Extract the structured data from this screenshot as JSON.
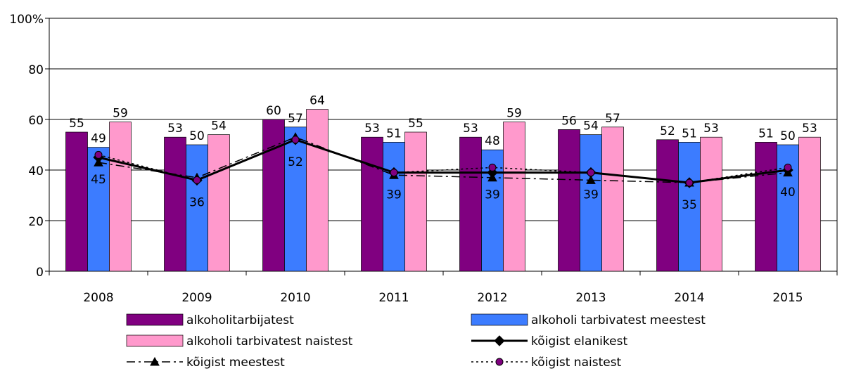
{
  "chart_data": {
    "type": "bar",
    "categories": [
      "2008",
      "2009",
      "2010",
      "2011",
      "2012",
      "2013",
      "2014",
      "2015"
    ],
    "series": [
      {
        "name": "alkoholitarbijatest",
        "type": "bar",
        "color": "#800080",
        "labels": true,
        "values": [
          55,
          53,
          60,
          53,
          53,
          56,
          52,
          51
        ]
      },
      {
        "name": "alkoholi tarbivatest meestest",
        "type": "bar",
        "color": "#3c7cff",
        "labels": true,
        "values": [
          49,
          50,
          57,
          51,
          48,
          54,
          51,
          50
        ]
      },
      {
        "name": "alkoholi tarbivatest naistest",
        "type": "bar",
        "color": "#ff99cc",
        "labels": true,
        "values": [
          59,
          54,
          64,
          55,
          59,
          57,
          53,
          53
        ]
      },
      {
        "name": "kõigist elanikest",
        "type": "line",
        "color": "#000000",
        "marker": "diamond",
        "dash": "none",
        "width": 3,
        "labels": true,
        "values": [
          45,
          36,
          52,
          39,
          39,
          39,
          35,
          40
        ]
      },
      {
        "name": "kõigist meestest",
        "type": "line",
        "color": "#000000",
        "marker": "triangle",
        "dash": "12,5,3,5",
        "width": 1.5,
        "labels": false,
        "values": [
          43,
          37,
          53,
          38,
          37,
          36,
          35,
          39
        ]
      },
      {
        "name": "kõigist naistest",
        "type": "line",
        "color": "#000000",
        "marker": "circle",
        "marker_color": "#800080",
        "dash": "3,4",
        "width": 1.5,
        "labels": false,
        "values": [
          46,
          36,
          52,
          39,
          41,
          39,
          35,
          41
        ]
      }
    ],
    "ylim": [
      0,
      100
    ],
    "yticks": [
      0,
      20,
      40,
      60,
      80,
      {
        "value": 100,
        "label": "100%"
      }
    ],
    "grid": true
  }
}
